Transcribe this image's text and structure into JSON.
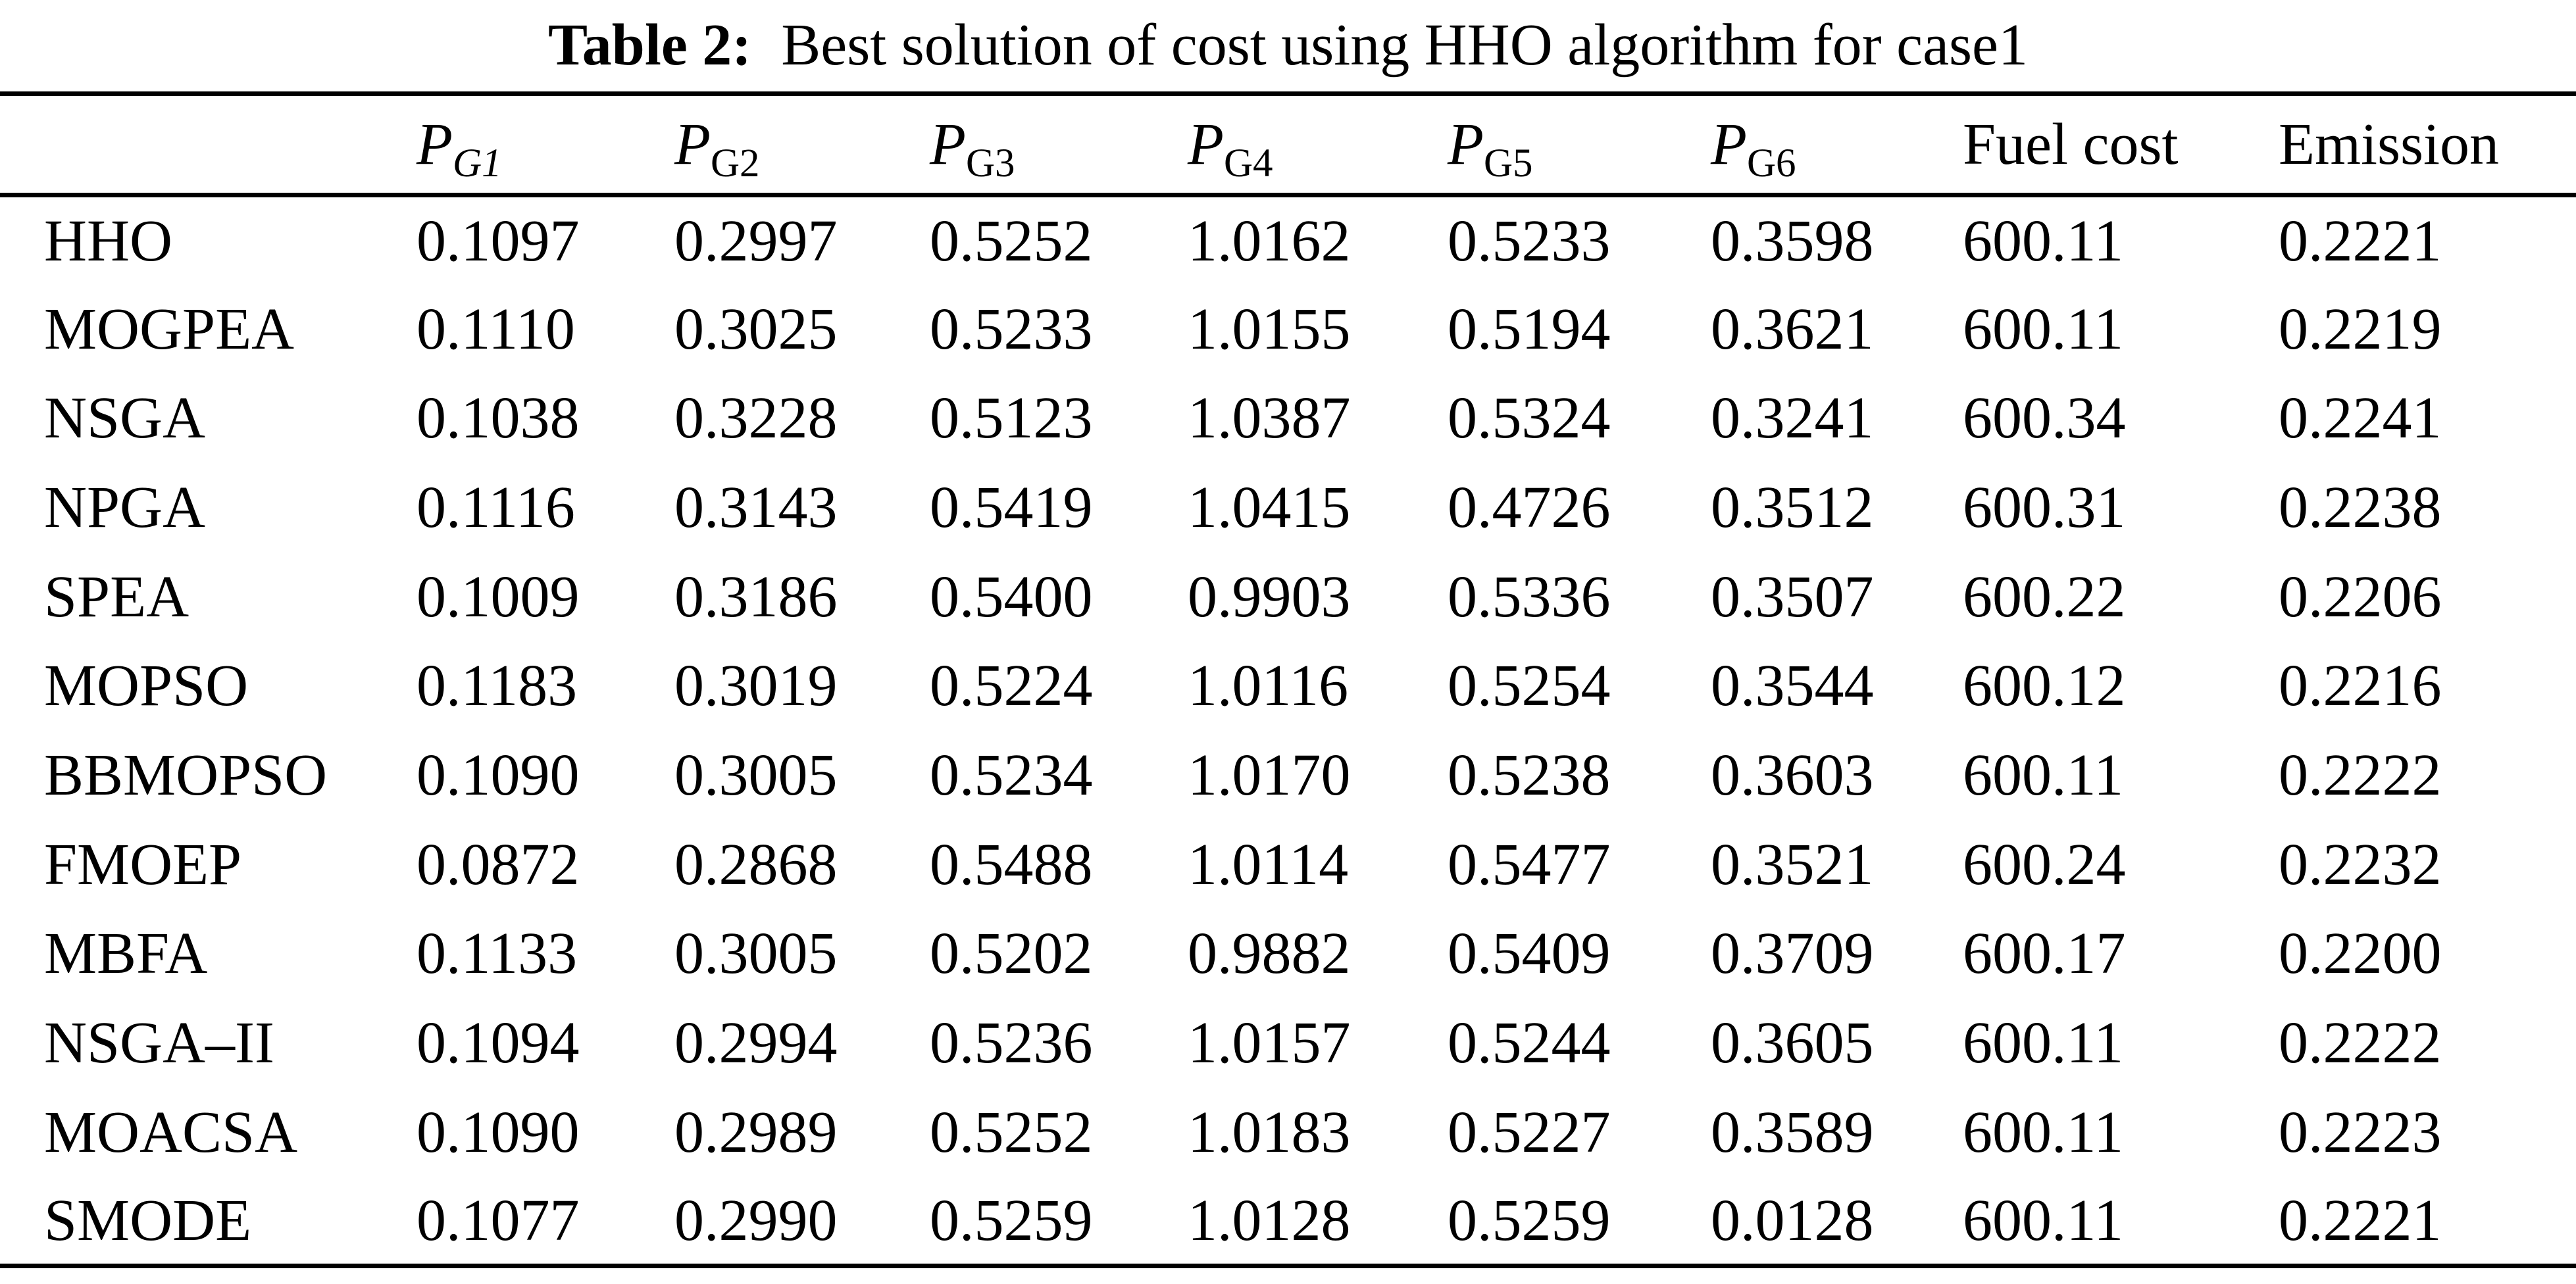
{
  "caption": {
    "label": "Table 2:",
    "text": "Best solution of cost using HHO algorithm for case1"
  },
  "table": {
    "columns": {
      "method": "",
      "pg": [
        {
          "base": "P",
          "sub": "G1",
          "sub_italic": true
        },
        {
          "base": "P",
          "sub": "G2",
          "sub_italic": false
        },
        {
          "base": "P",
          "sub": "G3",
          "sub_italic": false
        },
        {
          "base": "P",
          "sub": "G4",
          "sub_italic": false
        },
        {
          "base": "P",
          "sub": "G5",
          "sub_italic": false
        },
        {
          "base": "P",
          "sub": "G6",
          "sub_italic": false
        }
      ],
      "fuel_cost": "Fuel cost",
      "emission": "Emission"
    },
    "rows": [
      {
        "method": "HHO",
        "values": [
          "0.1097",
          "0.2997",
          "0.5252",
          "1.0162",
          "0.5233",
          "0.3598",
          "600.11",
          "0.2221"
        ]
      },
      {
        "method": "MOGPEA",
        "values": [
          "0.1110",
          "0.3025",
          "0.5233",
          "1.0155",
          "0.5194",
          "0.3621",
          "600.11",
          "0.2219"
        ]
      },
      {
        "method": "NSGA",
        "values": [
          "0.1038",
          "0.3228",
          "0.5123",
          "1.0387",
          "0.5324",
          "0.3241",
          "600.34",
          "0.2241"
        ]
      },
      {
        "method": "NPGA",
        "values": [
          "0.1116",
          "0.3143",
          "0.5419",
          "1.0415",
          "0.4726",
          "0.3512",
          "600.31",
          "0.2238"
        ]
      },
      {
        "method": "SPEA",
        "values": [
          "0.1009",
          "0.3186",
          "0.5400",
          "0.9903",
          "0.5336",
          "0.3507",
          "600.22",
          "0.2206"
        ]
      },
      {
        "method": "MOPSO",
        "values": [
          "0.1183",
          "0.3019",
          "0.5224",
          "1.0116",
          "0.5254",
          "0.3544",
          "600.12",
          "0.2216"
        ]
      },
      {
        "method": "BBMOPSO",
        "values": [
          "0.1090",
          "0.3005",
          "0.5234",
          "1.0170",
          "0.5238",
          "0.3603",
          "600.11",
          "0.2222"
        ]
      },
      {
        "method": "FMOEP",
        "values": [
          "0.0872",
          "0.2868",
          "0.5488",
          "1.0114",
          "0.5477",
          "0.3521",
          "600.24",
          "0.2232"
        ]
      },
      {
        "method": "MBFA",
        "values": [
          "0.1133",
          "0.3005",
          "0.5202",
          "0.9882",
          "0.5409",
          "0.3709",
          "600.17",
          "0.2200"
        ]
      },
      {
        "method": "NSGA–II",
        "values": [
          "0.1094",
          "0.2994",
          "0.5236",
          "1.0157",
          "0.5244",
          "0.3605",
          "600.11",
          "0.2222"
        ]
      },
      {
        "method": "MOACSA",
        "values": [
          "0.1090",
          "0.2989",
          "0.5252",
          "1.0183",
          "0.5227",
          "0.3589",
          "600.11",
          "0.2223"
        ]
      },
      {
        "method": "SMODE",
        "values": [
          "0.1077",
          "0.2990",
          "0.5259",
          "1.0128",
          "0.5259",
          "0.0128",
          "600.11",
          "0.2221"
        ]
      }
    ]
  }
}
